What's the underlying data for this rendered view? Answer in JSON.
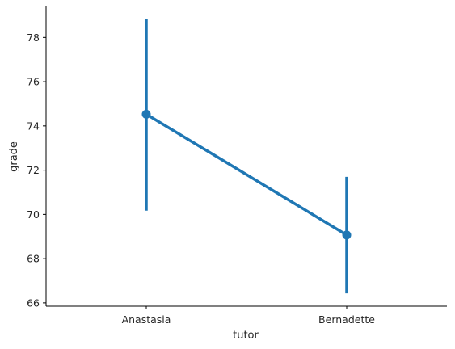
{
  "chart_data": {
    "type": "line",
    "title": "",
    "xlabel": "tutor",
    "ylabel": "grade",
    "categories": [
      "Anastasia",
      "Bernadette"
    ],
    "series": [
      {
        "values": [
          74.53,
          69.07
        ],
        "ci_low": [
          70.17,
          66.43
        ],
        "ci_high": [
          78.83,
          71.7
        ],
        "color": "#1f77b4"
      }
    ],
    "ylim": [
      65.85,
      79.4
    ],
    "yticks": [
      66,
      68,
      70,
      72,
      74,
      76,
      78
    ],
    "grid": false,
    "legend": "none"
  }
}
